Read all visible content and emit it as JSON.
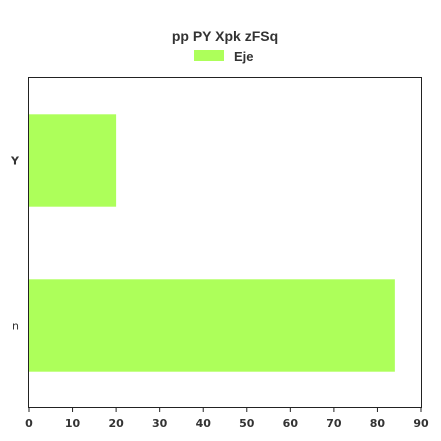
{
  "chart_data": {
    "type": "bar",
    "orientation": "horizontal",
    "title": "pp PY Xpk zFSq",
    "categories": [
      "Y",
      "n"
    ],
    "series": [
      {
        "name": "Eje",
        "values": [
          20,
          84
        ],
        "color": "#adff5a"
      }
    ],
    "xlim": [
      0,
      90
    ],
    "xticks": [
      "0",
      "10",
      "20",
      "30",
      "40",
      "50",
      "60",
      "70",
      "80",
      "90"
    ],
    "xlabel": "",
    "ylabel": "",
    "grid": false,
    "legend_position": "top"
  }
}
